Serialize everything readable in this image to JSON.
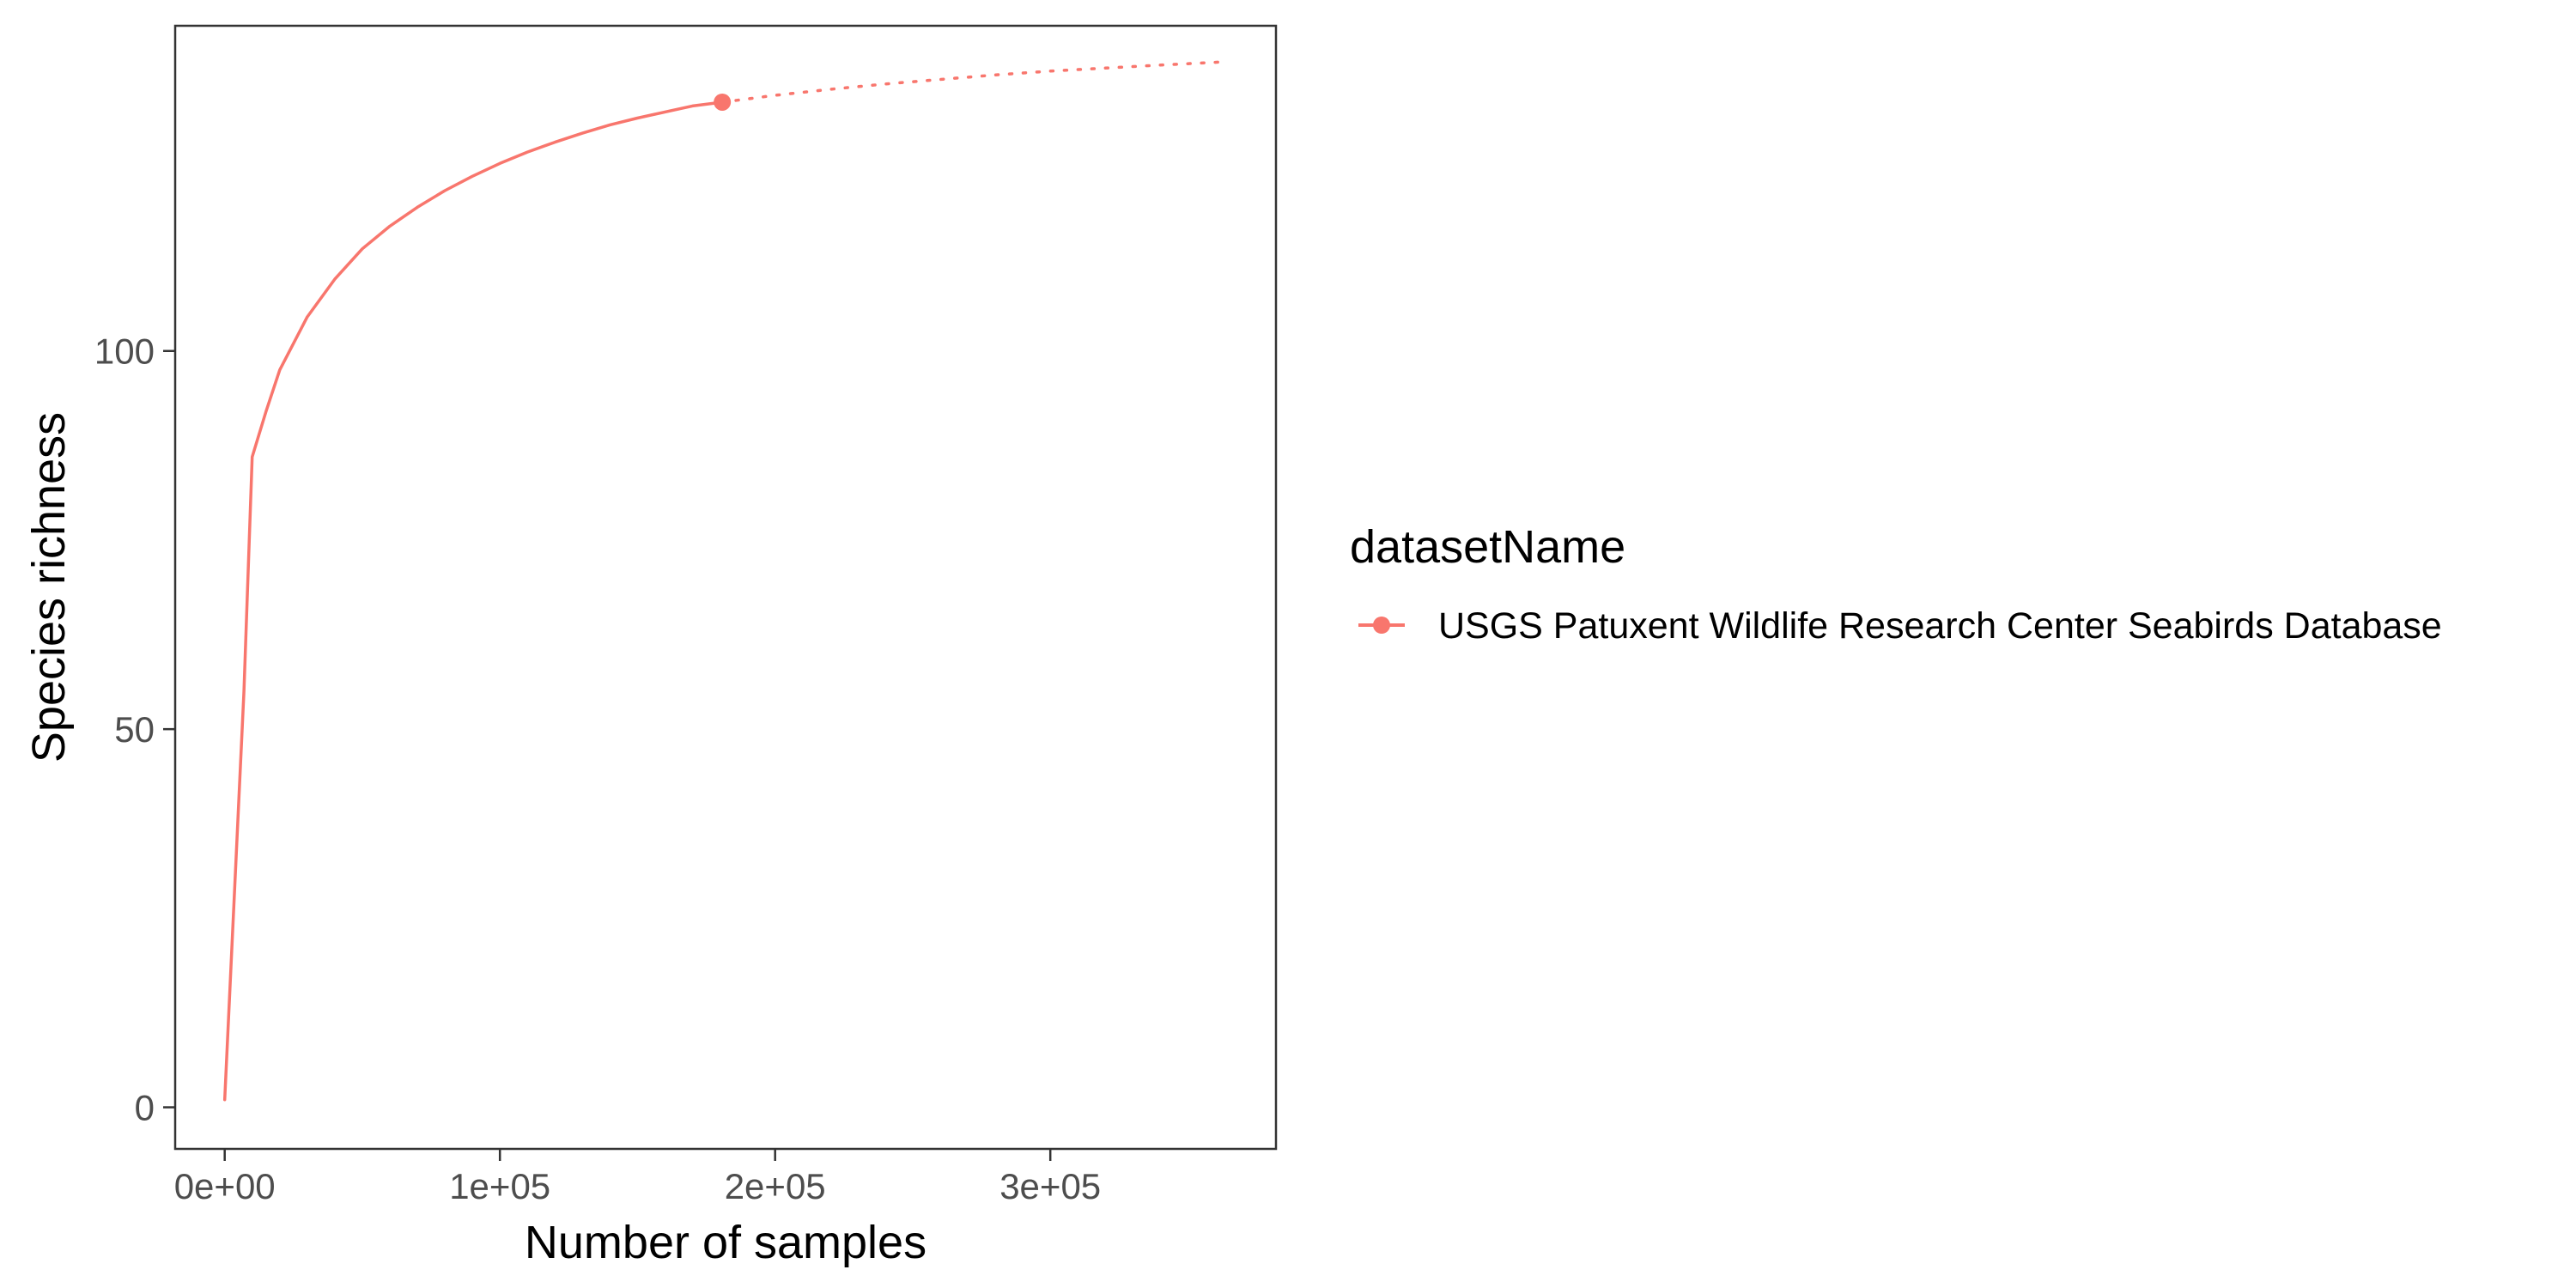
{
  "chart_data": {
    "type": "line",
    "xlabel": "Number of samples",
    "ylabel": "Species richness",
    "xlim": [
      -18000,
      382000
    ],
    "ylim": [
      -5.5,
      143
    ],
    "x_ticks": [
      0,
      100000,
      200000,
      300000
    ],
    "x_tick_labels": [
      "0e+00",
      "1e+05",
      "2e+05",
      "3e+05"
    ],
    "y_ticks": [
      0,
      50,
      100
    ],
    "y_tick_labels": [
      "0",
      "50",
      "100"
    ],
    "grid": false,
    "legend": {
      "title": "datasetName",
      "position": "right"
    },
    "series": [
      {
        "name": "USGS Patuxent Wildlife Research Center Seabirds Database",
        "color": "#F8766D",
        "interpolated": {
          "x": [
            1,
            7000,
            10000,
            15000,
            20000,
            30000,
            40000,
            50000,
            60000,
            70000,
            80000,
            90000,
            100000,
            110000,
            120000,
            130000,
            140000,
            150000,
            160000,
            170000,
            180800
          ],
          "y": [
            1,
            55,
            86,
            92,
            97.5,
            104.5,
            109.5,
            113.5,
            116.5,
            119,
            121.2,
            123.1,
            124.8,
            126.3,
            127.6,
            128.8,
            129.9,
            130.8,
            131.6,
            132.4,
            132.9
          ]
        },
        "observed": {
          "x": 180800,
          "y": 132.9
        },
        "extrapolated": {
          "x": [
            180800,
            200000,
            220000,
            240000,
            260000,
            280000,
            300000,
            320000,
            340000,
            361600
          ],
          "y": [
            132.9,
            133.8,
            134.6,
            135.3,
            135.9,
            136.5,
            137.0,
            137.4,
            137.8,
            138.2
          ]
        }
      }
    ]
  }
}
